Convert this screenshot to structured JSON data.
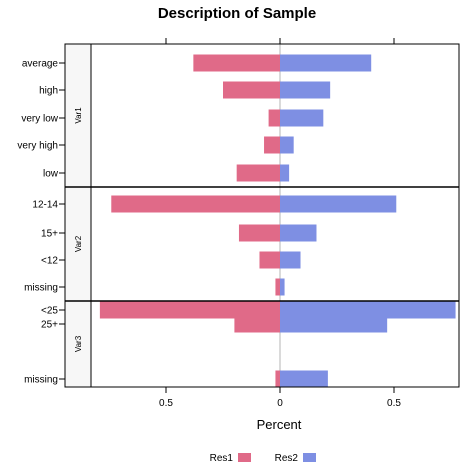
{
  "chart_data": {
    "type": "bar",
    "orientation": "horizontal",
    "layout": "diverging",
    "title": "Description of Sample",
    "xlabel": "Percent",
    "xlim": [
      -0.86,
      0.86
    ],
    "x_ticks": [
      {
        "value": -0.5,
        "label": "0.5"
      },
      {
        "value": 0,
        "label": "0"
      },
      {
        "value": 0.5,
        "label": "0.5"
      }
    ],
    "series": [
      {
        "name": "Res1",
        "color": "#e06a88",
        "side": "left"
      },
      {
        "name": "Res2",
        "color": "#7e8fe3",
        "side": "right"
      }
    ],
    "panels": [
      {
        "strip": "Var1",
        "categories": [
          "average",
          "high",
          "very low",
          "very high",
          "low"
        ],
        "values": {
          "Res1": [
            0.38,
            0.25,
            0.05,
            0.07,
            0.19
          ],
          "Res2": [
            0.4,
            0.22,
            0.19,
            0.06,
            0.04
          ]
        }
      },
      {
        "strip": "Var2",
        "categories": [
          "12-14",
          "15+",
          "<12",
          "missing"
        ],
        "values": {
          "Res1": [
            0.74,
            0.18,
            0.09,
            0.02
          ],
          "Res2": [
            0.51,
            0.16,
            0.09,
            0.02
          ]
        }
      },
      {
        "strip": "Var3",
        "categories": [
          "<25",
          "25+",
          "",
          "",
          "missing"
        ],
        "values": {
          "Res1": [
            0.79,
            0.2,
            null,
            null,
            0.02
          ],
          "Res2": [
            0.77,
            0.47,
            null,
            null,
            0.21
          ]
        }
      }
    ],
    "grid": false,
    "legend_position": "bottom"
  }
}
